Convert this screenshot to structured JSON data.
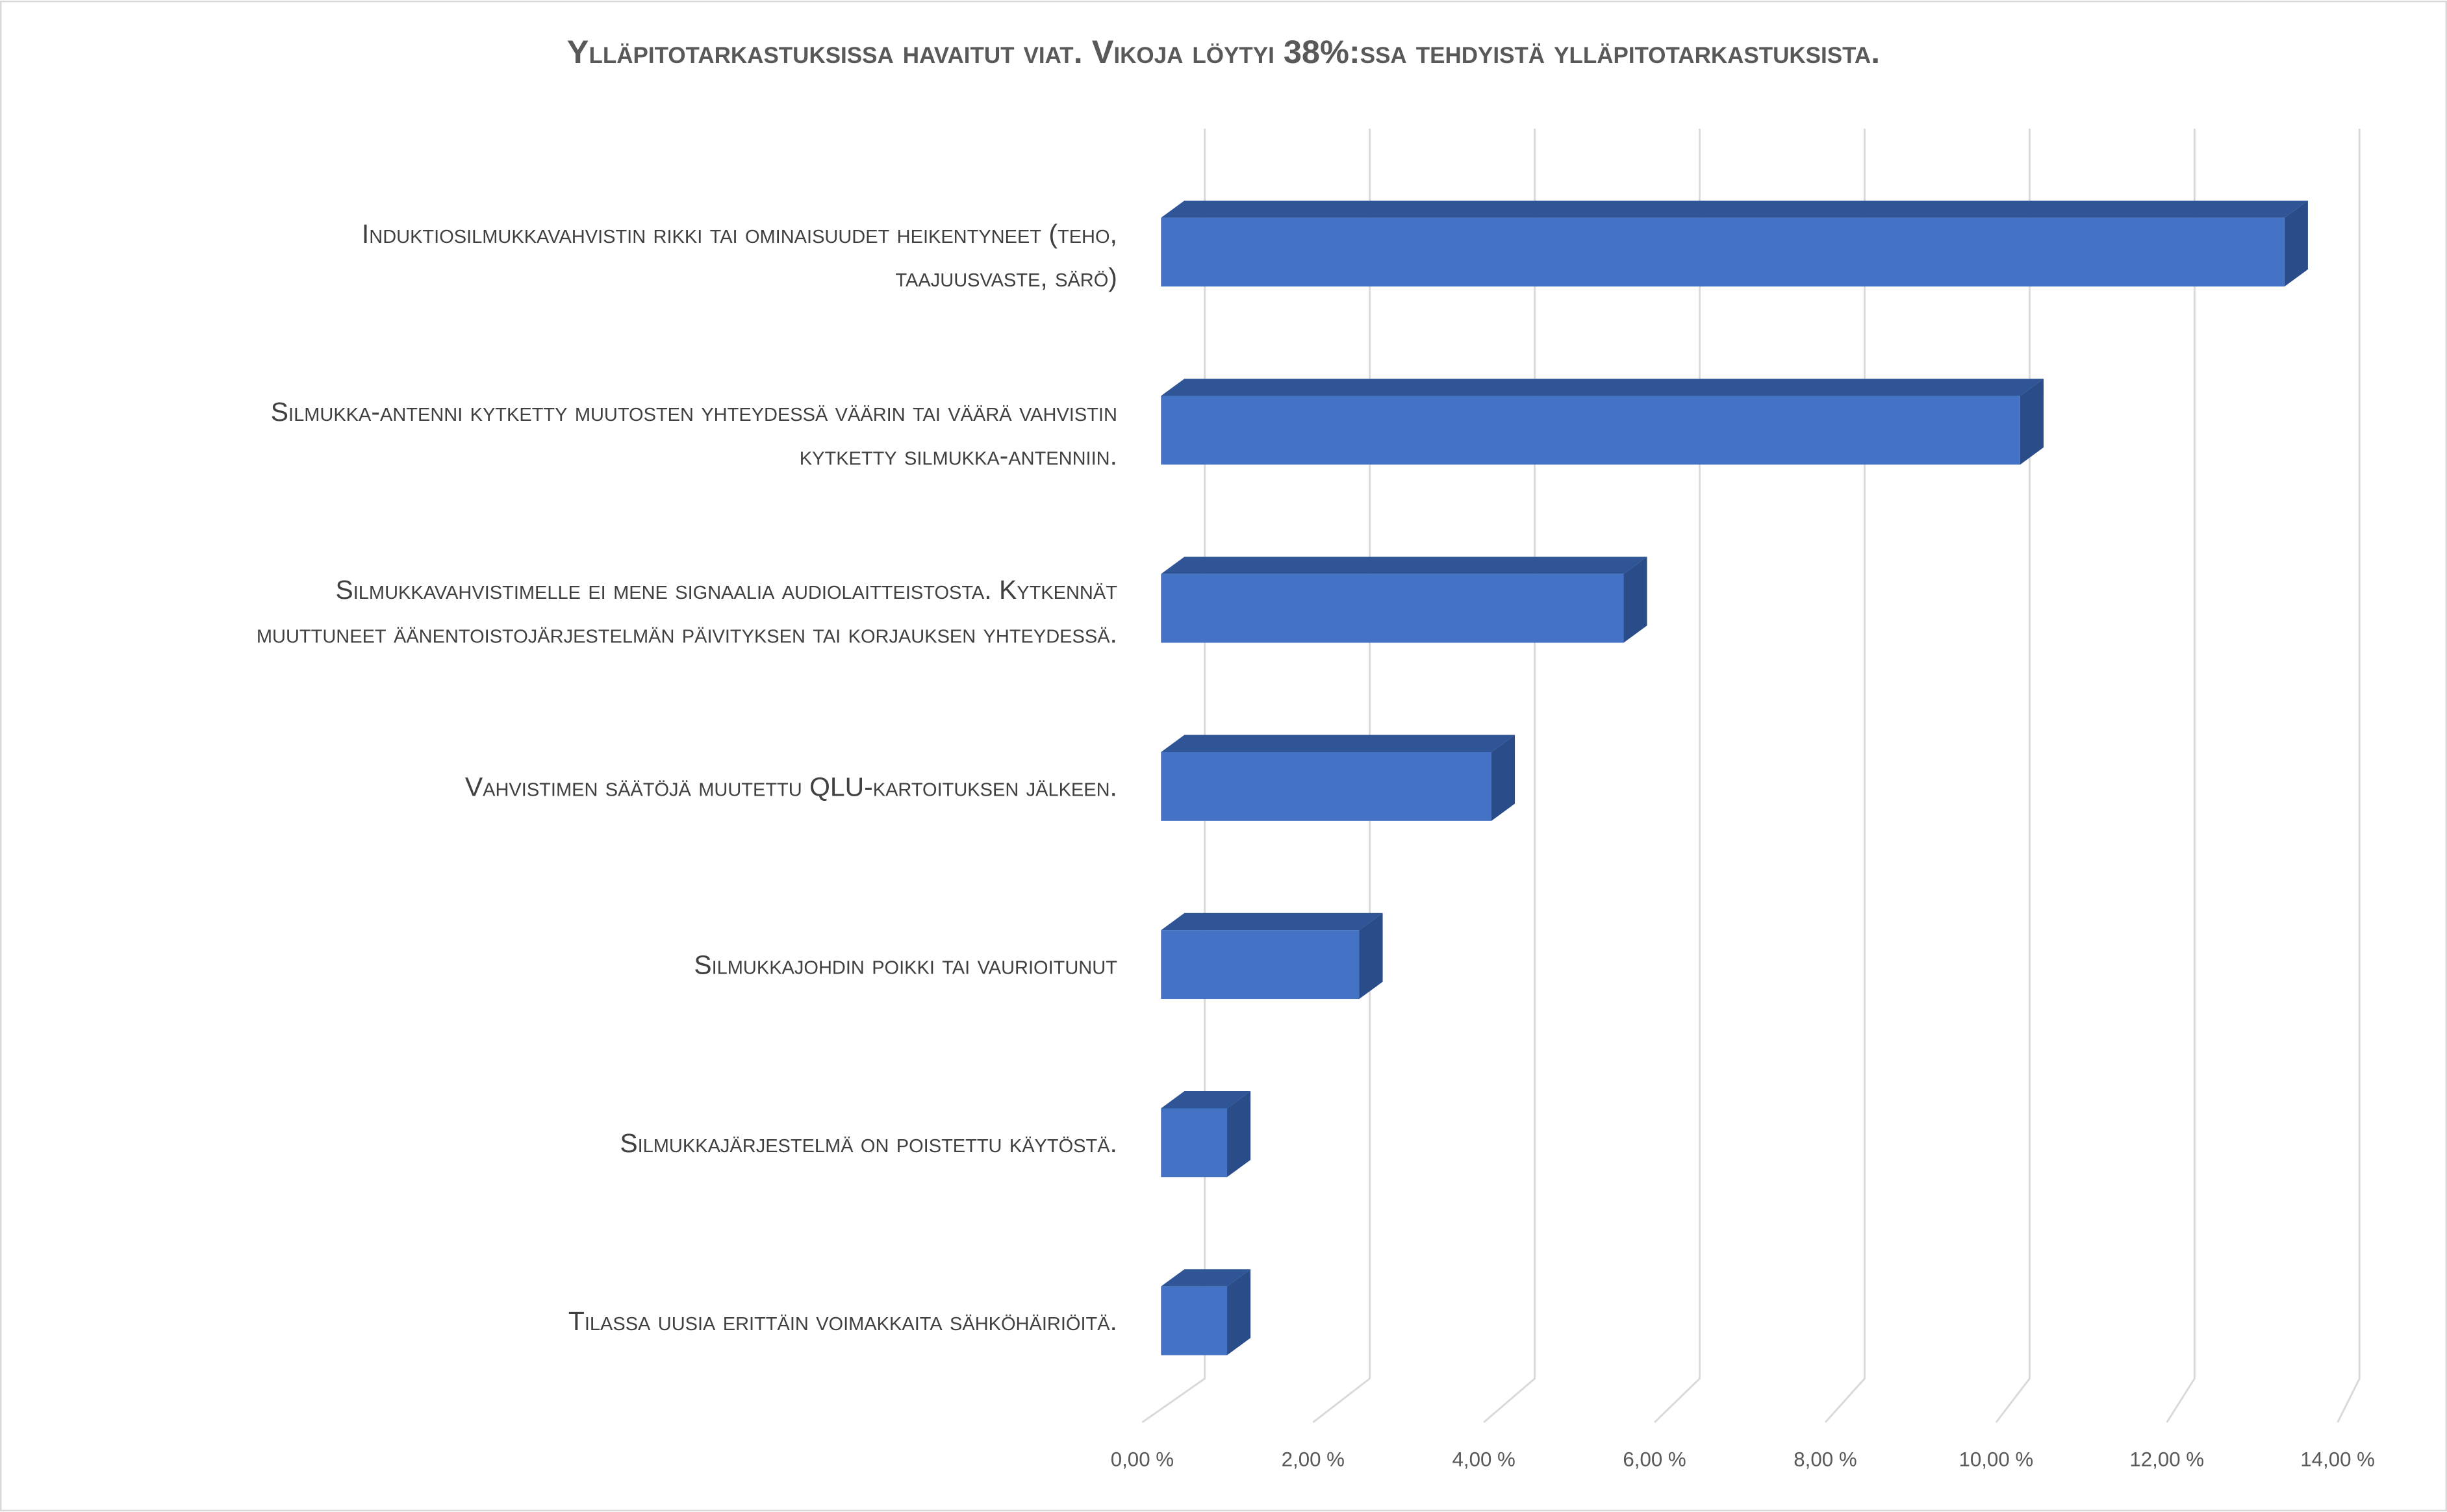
{
  "chart_data": {
    "type": "bar",
    "orientation": "horizontal",
    "style": "3d",
    "title": "Ylläpitotarkastuksissa havaitut viat. Vikoja löytyi 38%:ssa tehdyistä ylläpitotarkastuksista.",
    "categories": [
      [
        "Induktiosilmukkavahvistin rikki tai ominaisuudet heikentyneet (teho,",
        "taajuusvaste, särö)"
      ],
      [
        "Silmukka-antenni kytketty muutosten yhteydessä väärin tai väärä vahvistin",
        "kytketty silmukka-antenniin."
      ],
      [
        "Silmukkavahvistimelle ei mene signaalia audiolaitteistosta. Kytkennät",
        "muuttuneet äänentoistojärjestelmän päivityksen tai korjauksen  yhteydessä."
      ],
      [
        "Vahvistimen säätöjä muutettu QLU-kartoituksen jälkeen."
      ],
      [
        "Silmukkajohdin poikki tai vaurioitunut"
      ],
      [
        "Silmukkajärjestelmä on poistettu käytöstä."
      ],
      [
        "Tilassa uusia erittäin voimakkaita sähköhäiriöitä."
      ]
    ],
    "values": [
      13.6,
      10.4,
      5.6,
      4.0,
      2.4,
      0.8,
      0.8
    ],
    "xlim": [
      0,
      14
    ],
    "xticks": [
      "0,00 %",
      "2,00 %",
      "4,00 %",
      "6,00 %",
      "8,00 %",
      "10,00 %",
      "12,00 %",
      "14,00 %"
    ],
    "grid": true,
    "legend": "none",
    "colors": {
      "front": "#4472C4",
      "top": "#2F5597",
      "side": "#2A4C88",
      "grid": "#D9D9D9",
      "text": "#404040"
    }
  }
}
